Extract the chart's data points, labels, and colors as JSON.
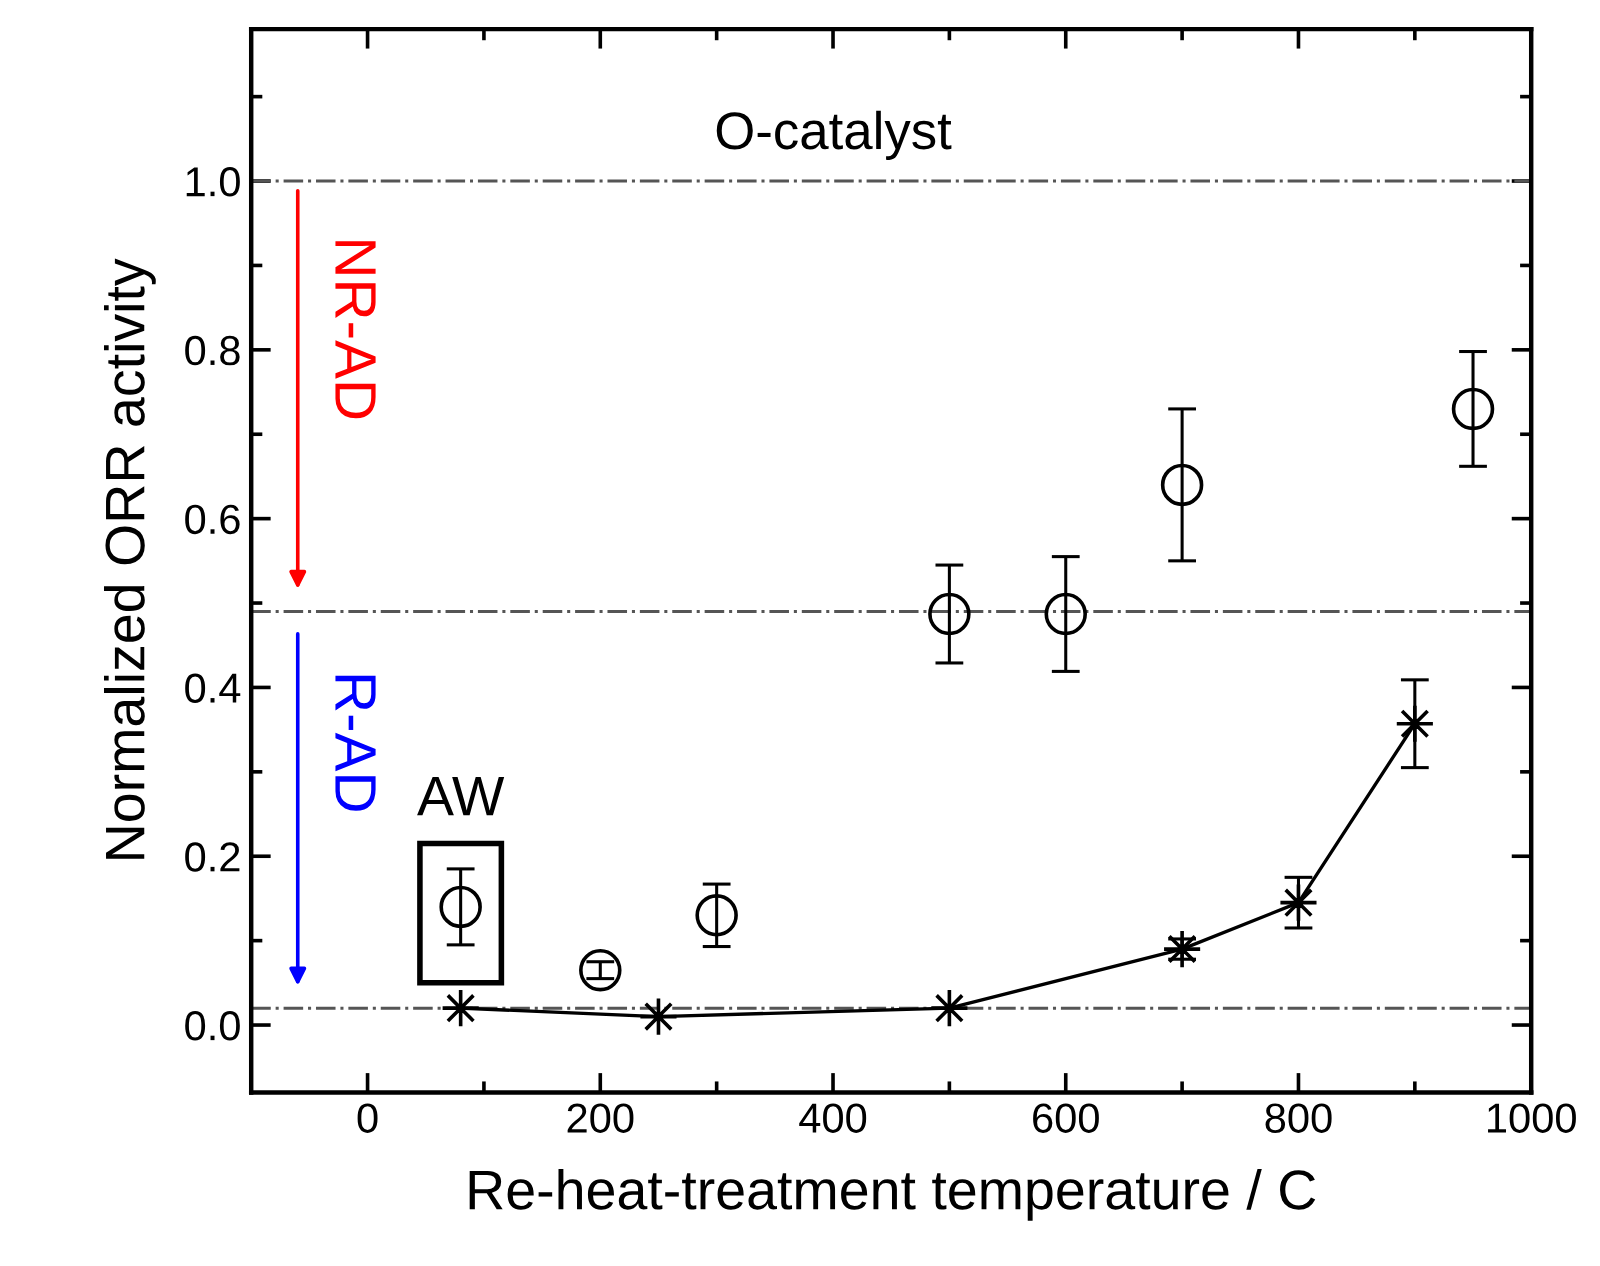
{
  "chart_data": {
    "type": "scatter",
    "xlabel": "Re-heat-treatment temperature / C",
    "ylabel": "Normalized ORR activity",
    "xlim": [
      -100,
      1000
    ],
    "xticks": [
      0,
      200,
      400,
      600,
      800,
      1000
    ],
    "ylim": [
      -0.08,
      1.18
    ],
    "yticks": [
      {
        "value": 0,
        "label": "0.0"
      },
      0.2,
      0.4,
      0.6,
      0.8,
      {
        "value": 1,
        "label": "1.0"
      }
    ],
    "grid": false,
    "legend": false,
    "series": [
      {
        "marker": "circle",
        "color": "#000000",
        "x": [
          80,
          200,
          300,
          500,
          600,
          700,
          950
        ],
        "values": [
          0.14,
          0.065,
          0.13,
          0.487,
          0.487,
          0.64,
          0.73
        ],
        "errors": [
          0.045,
          0.01,
          0.037,
          0.058,
          0.068,
          0.09,
          0.068
        ]
      },
      {
        "type": "line",
        "marker": "star",
        "line_style": "solid",
        "color": "#000000",
        "x": [
          80,
          250,
          500,
          700,
          800,
          900
        ],
        "values": [
          0.02,
          0.01,
          0.02,
          0.09,
          0.145,
          0.357
        ],
        "errors": [
          null,
          null,
          null,
          0.012,
          0.03,
          0.052
        ]
      }
    ],
    "ref_lines": [
      {
        "axis": "y",
        "value": 1.0,
        "label": "O-catalyst",
        "color": "#555555",
        "line_style": "dashdot"
      },
      {
        "axis": "y",
        "value": 0.49,
        "color": "#555555",
        "line_style": "dashdot"
      },
      {
        "axis": "y",
        "value": 0.02,
        "color": "#555555",
        "line_style": "dashdot"
      }
    ],
    "annotations": [
      "NR-AD",
      "R-AD",
      {
        "text": "AW",
        "x": 80,
        "y": 0.14
      }
    ]
  }
}
